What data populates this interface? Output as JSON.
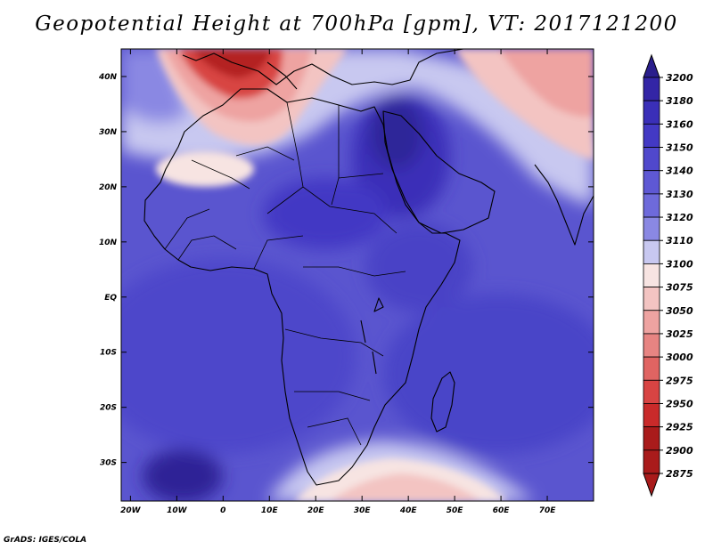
{
  "title": "Geopotential Height at 700hPa [gpm], VT: 2017121200",
  "credit": "GrADS: IGES/COLA",
  "map": {
    "lon_range": [
      -22,
      80
    ],
    "lat_range": [
      -37,
      45
    ],
    "lon_ticks": [
      {
        "value": -20,
        "label": "20W"
      },
      {
        "value": -10,
        "label": "10W"
      },
      {
        "value": 0,
        "label": "0"
      },
      {
        "value": 10,
        "label": "10E"
      },
      {
        "value": 20,
        "label": "20E"
      },
      {
        "value": 30,
        "label": "30E"
      },
      {
        "value": 40,
        "label": "40E"
      },
      {
        "value": 50,
        "label": "50E"
      },
      {
        "value": 60,
        "label": "60E"
      },
      {
        "value": 70,
        "label": "70E"
      }
    ],
    "lat_ticks": [
      {
        "value": 40,
        "label": "40N"
      },
      {
        "value": 30,
        "label": "30N"
      },
      {
        "value": 20,
        "label": "20N"
      },
      {
        "value": 10,
        "label": "10N"
      },
      {
        "value": 0,
        "label": "EQ"
      },
      {
        "value": -10,
        "label": "10S"
      },
      {
        "value": -20,
        "label": "20S"
      },
      {
        "value": -30,
        "label": "30S"
      }
    ]
  },
  "colorbar": {
    "levels": [
      "3200",
      "3180",
      "3160",
      "3150",
      "3140",
      "3130",
      "3120",
      "3110",
      "3100",
      "3075",
      "3050",
      "3025",
      "3000",
      "2975",
      "2950",
      "2925",
      "2900",
      "2875"
    ],
    "colors": [
      "#2a1e8c",
      "#3325a6",
      "#3a2fb8",
      "#4339c4",
      "#5048cc",
      "#5e58d4",
      "#6e6adb",
      "#8a88e3",
      "#c8c8f0",
      "#f7e4e2",
      "#f3c4c2",
      "#eea3a1",
      "#e78482",
      "#e06462",
      "#d84443",
      "#c92a2a",
      "#a91b1b"
    ]
  },
  "colors": {
    "field_background": "#5a55cf"
  }
}
